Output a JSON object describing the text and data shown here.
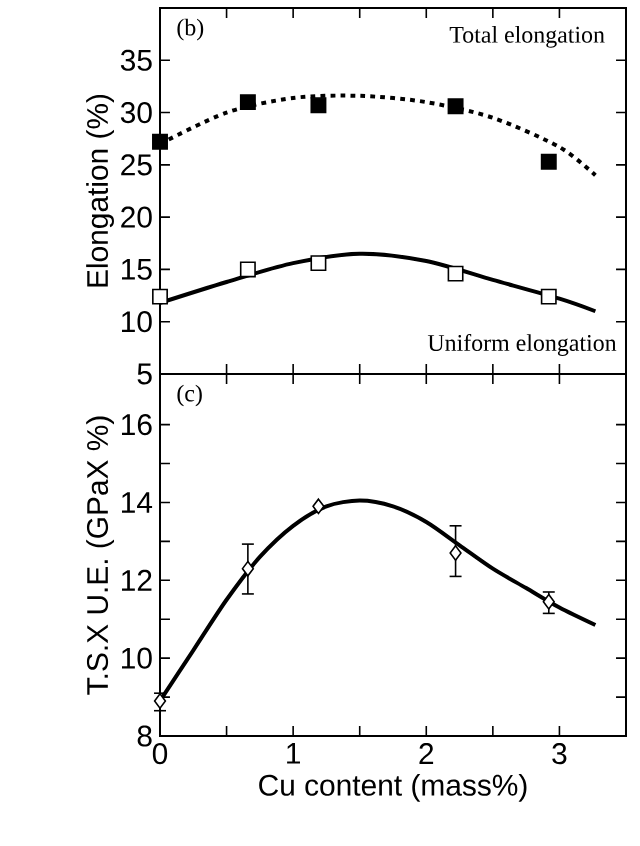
{
  "chart_data": [
    {
      "type": "scatter",
      "ylabel": "Elongation (%)",
      "annotations": [
        "(b)"
      ],
      "xlim": [
        0,
        3.5
      ],
      "ylim": [
        5,
        40
      ],
      "xticks": [
        0,
        {
          "value": 0.5,
          "label": null
        },
        1,
        {
          "value": 1.5,
          "label": null
        },
        2,
        {
          "value": 2.5,
          "label": null
        },
        3
      ],
      "yticks": [
        5,
        10,
        15,
        20,
        25,
        30,
        35
      ],
      "tick_labels": "y",
      "legend": "right",
      "grid": false,
      "series": [
        {
          "name": "Total elongation",
          "color": "#000000",
          "marker": "square",
          "x": [
            0,
            0.66,
            1.19,
            2.22,
            2.92
          ],
          "values": [
            27.2,
            31.0,
            30.7,
            30.6,
            25.3
          ]
        },
        {
          "type": "line",
          "line_style": "dotted",
          "color": "#000000",
          "x": [
            0,
            0.5,
            1,
            1.5,
            2,
            2.5,
            3,
            3.27
          ],
          "values": [
            27,
            30,
            31.4,
            31.6,
            31,
            29.5,
            26.7,
            24
          ]
        },
        {
          "name": "Uniform elongation",
          "color": "#ffffff",
          "marker": "square",
          "x": [
            0,
            0.66,
            1.19,
            2.22,
            2.92
          ],
          "values": [
            12.4,
            15.0,
            15.6,
            14.6,
            12.4
          ]
        },
        {
          "type": "line",
          "line_style": "solid",
          "color": "#000000",
          "x": [
            0,
            0.5,
            1,
            1.5,
            2,
            2.5,
            3,
            3.27
          ],
          "values": [
            11.8,
            13.8,
            15.6,
            16.5,
            15.8,
            14,
            12.2,
            11
          ]
        }
      ]
    },
    {
      "type": "scatter",
      "ylabel": "T.S.X U.E. (GPaX %)",
      "xlabel": "Cu content (mass%)",
      "annotations": [
        "(c)"
      ],
      "xlim": [
        0,
        3.5
      ],
      "ylim": [
        8,
        17.3
      ],
      "xticks": [
        0,
        {
          "value": 0.5,
          "label": null
        },
        1,
        {
          "value": 1.5,
          "label": null
        },
        2,
        {
          "value": 2.5,
          "label": null
        },
        3
      ],
      "yticks": [
        8,
        {
          "value": 9,
          "label": null
        },
        10,
        {
          "value": 11,
          "label": null
        },
        12,
        {
          "value": 13,
          "label": null
        },
        14,
        {
          "value": 15,
          "label": null
        },
        16
      ],
      "legend": false,
      "grid": false,
      "series": [
        {
          "color": "#ffffff",
          "marker": "diamond",
          "x": [
            0,
            0.66,
            1.19,
            2.22,
            2.92
          ],
          "values": [
            8.9,
            12.3,
            13.9,
            12.7,
            11.45
          ],
          "errors": [
            [
              8.65,
              9.1
            ],
            [
              11.65,
              12.93
            ],
            null,
            [
              12.1,
              13.4
            ],
            [
              11.15,
              11.7
            ]
          ]
        },
        {
          "type": "line",
          "line_style": "solid",
          "color": "#000000",
          "x": [
            0,
            0.25,
            0.5,
            0.75,
            1,
            1.25,
            1.5,
            1.75,
            2,
            2.25,
            2.5,
            2.75,
            3,
            3.27
          ],
          "values": [
            8.9,
            10.2,
            11.5,
            12.6,
            13.4,
            13.9,
            14.05,
            13.9,
            13.5,
            12.9,
            12.3,
            11.8,
            11.3,
            10.85
          ]
        }
      ]
    }
  ]
}
